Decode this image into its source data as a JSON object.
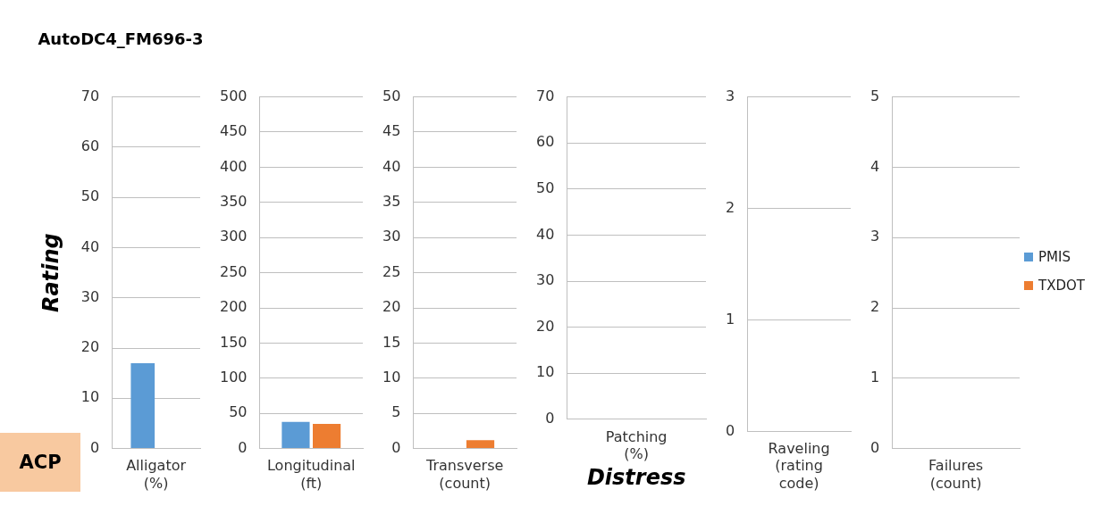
{
  "chart_data": [
    {
      "type": "bar",
      "title": "AutoDC4_FM696-3",
      "ylabel": "Rating",
      "annotations": [
        "ACP"
      ],
      "categories": [
        "Alligator (%)"
      ],
      "series": [
        {
          "color": "#5b9bd5",
          "values": [
            17
          ]
        },
        {
          "color": "#ed7d31",
          "values": [
            0
          ]
        }
      ],
      "ylim": [
        0,
        70
      ],
      "yticks": [
        0,
        10,
        20,
        30,
        40,
        50,
        60,
        70
      ],
      "grid": "y"
    },
    {
      "type": "bar",
      "categories": [
        "Longitudinal (ft)"
      ],
      "series": [
        {
          "color": "#5b9bd5",
          "values": [
            38
          ]
        },
        {
          "color": "#ed7d31",
          "values": [
            35
          ]
        }
      ],
      "ylim": [
        0,
        500
      ],
      "yticks": [
        0,
        50,
        100,
        150,
        200,
        250,
        300,
        350,
        400,
        450,
        500
      ],
      "grid": "y"
    },
    {
      "type": "bar",
      "categories": [
        "Transverse (count)"
      ],
      "series": [
        {
          "color": "#5b9bd5",
          "values": [
            0
          ]
        },
        {
          "color": "#ed7d31",
          "values": [
            1.2
          ]
        }
      ],
      "ylim": [
        0,
        50
      ],
      "yticks": [
        0,
        5,
        10,
        15,
        20,
        25,
        30,
        35,
        40,
        45,
        50
      ],
      "grid": "y"
    },
    {
      "type": "bar",
      "xlabel": "Distress",
      "categories": [
        "Patching (%)"
      ],
      "series": [
        {
          "color": "#5b9bd5",
          "values": [
            0
          ]
        },
        {
          "color": "#ed7d31",
          "values": [
            0
          ]
        }
      ],
      "ylim": [
        0,
        70
      ],
      "yticks": [
        0,
        10,
        20,
        30,
        40,
        50,
        60,
        70
      ],
      "grid": "y"
    },
    {
      "type": "bar",
      "categories": [
        "Raveling (rating code)"
      ],
      "series": [
        {
          "color": "#5b9bd5",
          "values": [
            0
          ]
        },
        {
          "color": "#ed7d31",
          "values": [
            0
          ]
        }
      ],
      "ylim": [
        0,
        3
      ],
      "yticks": [
        0,
        1,
        2,
        3
      ],
      "grid": "y"
    },
    {
      "type": "bar",
      "categories": [
        "Failures (count)"
      ],
      "legend": "right",
      "series": [
        {
          "name": "PMIS",
          "color": "#5b9bd5",
          "values": [
            0
          ]
        },
        {
          "name": "TXDOT",
          "color": "#ed7d31",
          "values": [
            0
          ]
        }
      ],
      "ylim": [
        0,
        5
      ],
      "yticks": [
        0,
        1,
        2,
        3,
        4,
        5
      ],
      "grid": "y"
    }
  ]
}
